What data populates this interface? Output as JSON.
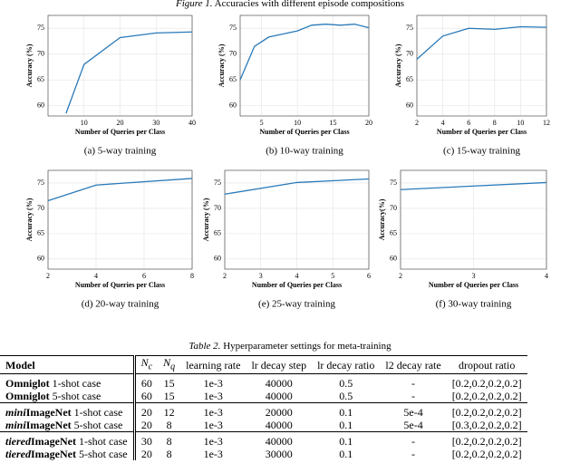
{
  "figure_caption": {
    "label": "Figure 1.",
    "text": "Accuracies with different episode compositions"
  },
  "chart_data": [
    {
      "type": "line",
      "caption": "(a) 5-way training",
      "x_label": "Number of Queries per Class",
      "y_label": "Accuracy (%)",
      "x": [
        5,
        10,
        20,
        30,
        40
      ],
      "values": [
        58.5,
        68,
        73.2,
        74.1,
        74.3
      ],
      "color": "#2a7ab9",
      "xlim": [
        0,
        40
      ],
      "xticks": [
        10,
        20,
        30,
        40
      ],
      "ylim": [
        58,
        77.5
      ],
      "yticks": [
        60,
        65,
        70,
        75
      ],
      "grid": true
    },
    {
      "type": "line",
      "caption": "(b) 10-way training",
      "x_label": "Number of Queries per Class",
      "y_label": "Accuracy (%)",
      "x": [
        2,
        4,
        6,
        8,
        10,
        12,
        14,
        16,
        18,
        20
      ],
      "values": [
        65,
        71.5,
        73.3,
        73.9,
        74.5,
        75.6,
        75.8,
        75.6,
        75.8,
        75.1
      ],
      "color": "#2a7ab9",
      "xlim": [
        2,
        20
      ],
      "xticks": [
        5,
        10,
        15,
        20
      ],
      "ylim": [
        58,
        77.5
      ],
      "yticks": [
        60,
        65,
        70,
        75
      ],
      "grid": true
    },
    {
      "type": "line",
      "caption": "(c) 15-way training",
      "x_label": "Number of Queries per Class",
      "y_label": "Accuracy (%)",
      "x": [
        2,
        4,
        6,
        8,
        10,
        12
      ],
      "values": [
        69,
        73.5,
        75,
        74.8,
        75.3,
        75.2
      ],
      "color": "#2a7ab9",
      "xlim": [
        2,
        12
      ],
      "xticks": [
        2,
        4,
        6,
        8,
        10,
        12
      ],
      "ylim": [
        58,
        77.5
      ],
      "yticks": [
        60,
        65,
        70,
        75
      ],
      "grid": true
    },
    {
      "type": "line",
      "caption": "(d) 20-way training",
      "x_label": "Number of Queries per Class",
      "y_label": "Accuracy (%)",
      "x": [
        2,
        4,
        8
      ],
      "values": [
        71.5,
        74.6,
        75.9
      ],
      "color": "#2a7ab9",
      "xlim": [
        2,
        8
      ],
      "xticks": [
        2,
        4,
        6,
        8
      ],
      "ylim": [
        58,
        77.5
      ],
      "yticks": [
        60,
        65,
        70,
        75
      ],
      "grid": true
    },
    {
      "type": "line",
      "caption": "(e) 25-way training",
      "x_label": "Number of Queries per Class",
      "y_label": "Accuracy (%)",
      "x": [
        2,
        4,
        6
      ],
      "values": [
        72.8,
        75.1,
        75.8
      ],
      "color": "#2a7ab9",
      "xlim": [
        2,
        6
      ],
      "xticks": [
        2,
        3,
        4,
        5,
        6
      ],
      "ylim": [
        58,
        77.5
      ],
      "yticks": [
        60,
        65,
        70,
        75
      ],
      "grid": true
    },
    {
      "type": "line",
      "caption": "(f) 30-way training",
      "x_label": "Number of Queries per Class",
      "y_label": "Accuracy(%)",
      "x": [
        2,
        4
      ],
      "values": [
        73.7,
        75.1
      ],
      "color": "#2a7ab9",
      "xlim": [
        2,
        4
      ],
      "xticks": [
        2,
        3,
        4
      ],
      "ylim": [
        58,
        77.5
      ],
      "yticks": [
        60,
        65,
        70,
        75
      ],
      "grid": true
    }
  ],
  "table": {
    "caption": {
      "label": "Table 2.",
      "text": "Hyperparameter settings for meta-training"
    },
    "header": [
      "Model",
      {
        "main": "N",
        "sub": "c"
      },
      {
        "main": "N",
        "sub": "q"
      },
      "learning rate",
      "lr decay step",
      "lr decay ratio",
      "l2 decay rate",
      "dropout ratio"
    ],
    "groups": [
      [
        [
          {
            "prefix": "",
            "name": "Omniglot",
            "suffix": " 1-shot case"
          },
          "60",
          "15",
          "1e-3",
          "40000",
          "0.5",
          "-",
          "[0.2,0.2,0.2,0.2]"
        ],
        [
          {
            "prefix": "",
            "name": "Omniglot",
            "suffix": " 5-shot case"
          },
          "60",
          "15",
          "1e-3",
          "40000",
          "0.5",
          "-",
          "[0.2,0.2,0.2,0.2]"
        ]
      ],
      [
        [
          {
            "prefix": "mini",
            "name": "ImageNet",
            "suffix": " 1-shot case"
          },
          "20",
          "12",
          "1e-3",
          "20000",
          "0.1",
          "5e-4",
          "[0.2,0.2,0.2,0.2]"
        ],
        [
          {
            "prefix": "mini",
            "name": "ImageNet",
            "suffix": " 5-shot case"
          },
          "20",
          "8",
          "1e-3",
          "40000",
          "0.1",
          "5e-4",
          "[0.3,0.2,0.2,0.2]"
        ]
      ],
      [
        [
          {
            "prefix": "tiered",
            "name": "ImageNet",
            "suffix": " 1-shot case"
          },
          "30",
          "8",
          "1e-3",
          "40000",
          "0.1",
          "-",
          "[0.2,0.2,0.2,0.2]"
        ],
        [
          {
            "prefix": "tiered",
            "name": "ImageNet",
            "suffix": " 5-shot case"
          },
          "20",
          "8",
          "1e-3",
          "30000",
          "0.1",
          "-",
          "[0.2,0.2,0.2,0.2]"
        ]
      ]
    ]
  }
}
